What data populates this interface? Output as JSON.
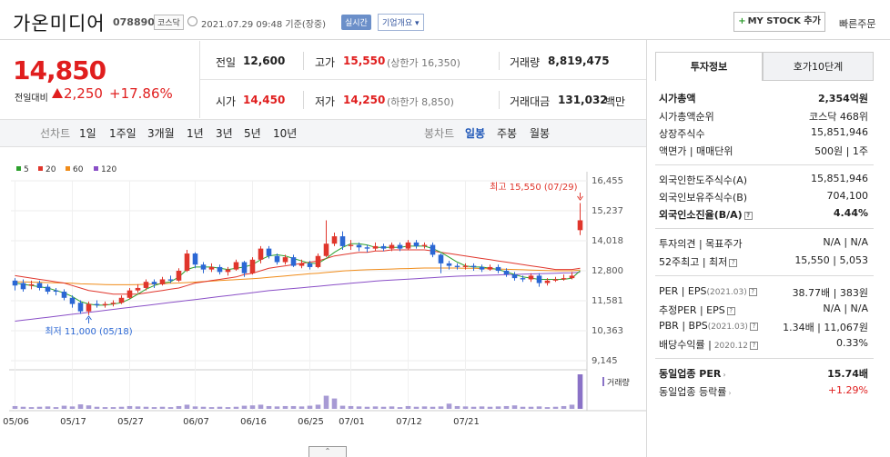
{
  "header": {
    "stock_name": "가온미디어",
    "stock_code": "078890",
    "market": "코스닥",
    "datetime": "2021.07.29 09:48 기준(장중)",
    "realtime_label": "실시간",
    "company_overview_label": "기업개요 ▾",
    "my_stock_label": "MY STOCK 추가",
    "quick_order_label": "빠른주문"
  },
  "price": {
    "current": "14,850",
    "prev_day_label": "전일대비",
    "change": "2,250",
    "change_pct": "+17.86%"
  },
  "quote": {
    "prev_close_label": "전일",
    "prev_close": "12,600",
    "high_label": "고가",
    "high": "15,550",
    "upper_limit": "(상한가 16,350)",
    "volume_label": "거래량",
    "volume": "8,819,475",
    "open_label": "시가",
    "open": "14,450",
    "low_label": "저가",
    "low": "14,250",
    "lower_limit": "(하한가 8,850)",
    "amount_label": "거래대금",
    "amount": "131,032",
    "amount_unit": "백만"
  },
  "period_bar": {
    "line_label": "선차트",
    "line_periods": [
      "1일",
      "1주일",
      "3개월",
      "1년",
      "3년",
      "5년",
      "10년"
    ],
    "candle_label": "봉차트",
    "candle_periods": [
      "일봉",
      "주봉",
      "월봉"
    ],
    "active_candle": "일봉"
  },
  "chart_data": {
    "type": "candlestick",
    "legend": [
      {
        "name": "5",
        "color": "#2ca02c"
      },
      {
        "name": "20",
        "color": "#e0362c"
      },
      {
        "name": "60",
        "color": "#f08c1a"
      },
      {
        "name": "120",
        "color": "#8a4fc7"
      }
    ],
    "y_ticks": [
      "16,455",
      "15,237",
      "14,018",
      "12,800",
      "11,581",
      "10,363",
      "9,145"
    ],
    "y_range": [
      9145,
      16455
    ],
    "x_ticks": [
      "05/06",
      "05/17",
      "05/27",
      "06/07",
      "06/16",
      "06/25",
      "07/01",
      "07/12",
      "07/21"
    ],
    "volume_label": "거래량",
    "high_annotation": "최고 15,550 (07/29)",
    "low_annotation": "최저 11,000 (05/18)",
    "candles": [
      {
        "o": 12400,
        "c": 12200,
        "h": 12500,
        "l": 12000
      },
      {
        "o": 12300,
        "c": 12050,
        "h": 12450,
        "l": 11950
      },
      {
        "o": 12200,
        "c": 12250,
        "h": 12400,
        "l": 12050
      },
      {
        "o": 12300,
        "c": 12100,
        "h": 12400,
        "l": 12000
      },
      {
        "o": 12150,
        "c": 11950,
        "h": 12250,
        "l": 11850
      },
      {
        "o": 12000,
        "c": 11950,
        "h": 12100,
        "l": 11800
      },
      {
        "o": 11950,
        "c": 11700,
        "h": 12050,
        "l": 11600
      },
      {
        "o": 11700,
        "c": 11450,
        "h": 11800,
        "l": 11300
      },
      {
        "o": 11500,
        "c": 11150,
        "h": 11600,
        "l": 11050
      },
      {
        "o": 11150,
        "c": 11450,
        "h": 11550,
        "l": 11000
      },
      {
        "o": 11450,
        "c": 11400,
        "h": 11600,
        "l": 11300
      },
      {
        "o": 11400,
        "c": 11450,
        "h": 11550,
        "l": 11300
      },
      {
        "o": 11450,
        "c": 11500,
        "h": 11600,
        "l": 11350
      },
      {
        "o": 11500,
        "c": 11700,
        "h": 11800,
        "l": 11450
      },
      {
        "o": 11700,
        "c": 12000,
        "h": 12100,
        "l": 11650
      },
      {
        "o": 12000,
        "c": 12100,
        "h": 12250,
        "l": 11900
      },
      {
        "o": 12100,
        "c": 12350,
        "h": 12450,
        "l": 12000
      },
      {
        "o": 12350,
        "c": 12250,
        "h": 12450,
        "l": 12100
      },
      {
        "o": 12250,
        "c": 12450,
        "h": 12550,
        "l": 12200
      },
      {
        "o": 12450,
        "c": 12400,
        "h": 12600,
        "l": 12300
      },
      {
        "o": 12400,
        "c": 12800,
        "h": 12900,
        "l": 12350
      },
      {
        "o": 12800,
        "c": 13500,
        "h": 13650,
        "l": 12750
      },
      {
        "o": 13500,
        "c": 13050,
        "h": 13550,
        "l": 12900
      },
      {
        "o": 13050,
        "c": 12850,
        "h": 13150,
        "l": 12700
      },
      {
        "o": 12850,
        "c": 12950,
        "h": 13100,
        "l": 12750
      },
      {
        "o": 12950,
        "c": 12750,
        "h": 13050,
        "l": 12650
      },
      {
        "o": 12750,
        "c": 12850,
        "h": 12950,
        "l": 12600
      },
      {
        "o": 12850,
        "c": 13150,
        "h": 13250,
        "l": 12800
      },
      {
        "o": 13150,
        "c": 12700,
        "h": 13200,
        "l": 12550
      },
      {
        "o": 12700,
        "c": 13250,
        "h": 13350,
        "l": 12650
      },
      {
        "o": 13250,
        "c": 13700,
        "h": 13800,
        "l": 13100
      },
      {
        "o": 13700,
        "c": 13400,
        "h": 13800,
        "l": 13300
      },
      {
        "o": 13400,
        "c": 13150,
        "h": 13500,
        "l": 13050
      },
      {
        "o": 13150,
        "c": 13350,
        "h": 13450,
        "l": 13050
      },
      {
        "o": 13350,
        "c": 13000,
        "h": 13450,
        "l": 12950
      },
      {
        "o": 13000,
        "c": 13100,
        "h": 13250,
        "l": 12900
      },
      {
        "o": 13100,
        "c": 12950,
        "h": 13200,
        "l": 12850
      },
      {
        "o": 12950,
        "c": 13400,
        "h": 13500,
        "l": 12900
      },
      {
        "o": 13400,
        "c": 13900,
        "h": 14850,
        "l": 13350
      },
      {
        "o": 13900,
        "c": 14200,
        "h": 14350,
        "l": 13800
      },
      {
        "o": 14200,
        "c": 13800,
        "h": 14400,
        "l": 13650
      },
      {
        "o": 13800,
        "c": 13850,
        "h": 14050,
        "l": 13650
      },
      {
        "o": 13850,
        "c": 13750,
        "h": 13950,
        "l": 13600
      },
      {
        "o": 13750,
        "c": 13700,
        "h": 13850,
        "l": 13550
      },
      {
        "o": 13700,
        "c": 13800,
        "h": 13950,
        "l": 13600
      },
      {
        "o": 13800,
        "c": 13700,
        "h": 13900,
        "l": 13600
      },
      {
        "o": 13700,
        "c": 13850,
        "h": 13950,
        "l": 13600
      },
      {
        "o": 13850,
        "c": 13700,
        "h": 13950,
        "l": 13600
      },
      {
        "o": 13700,
        "c": 13950,
        "h": 14050,
        "l": 13650
      },
      {
        "o": 13950,
        "c": 13800,
        "h": 14050,
        "l": 13700
      },
      {
        "o": 13800,
        "c": 13850,
        "h": 13950,
        "l": 13700
      },
      {
        "o": 13850,
        "c": 13450,
        "h": 13950,
        "l": 13350
      },
      {
        "o": 13450,
        "c": 13100,
        "h": 13500,
        "l": 12700
      },
      {
        "o": 13100,
        "c": 13000,
        "h": 13200,
        "l": 12850
      },
      {
        "o": 13000,
        "c": 12950,
        "h": 13100,
        "l": 12850
      },
      {
        "o": 12950,
        "c": 13000,
        "h": 13100,
        "l": 12850
      },
      {
        "o": 13000,
        "c": 12950,
        "h": 13100,
        "l": 12800
      },
      {
        "o": 12950,
        "c": 12850,
        "h": 13050,
        "l": 12750
      },
      {
        "o": 12850,
        "c": 12950,
        "h": 13050,
        "l": 12800
      },
      {
        "o": 12950,
        "c": 12800,
        "h": 13050,
        "l": 12700
      },
      {
        "o": 12800,
        "c": 12650,
        "h": 12900,
        "l": 12550
      },
      {
        "o": 12650,
        "c": 12500,
        "h": 12750,
        "l": 12400
      },
      {
        "o": 12500,
        "c": 12450,
        "h": 12600,
        "l": 12350
      },
      {
        "o": 12450,
        "c": 12600,
        "h": 12700,
        "l": 12350
      },
      {
        "o": 12600,
        "c": 12300,
        "h": 12700,
        "l": 12150
      },
      {
        "o": 12300,
        "c": 12400,
        "h": 12500,
        "l": 12200
      },
      {
        "o": 12400,
        "c": 12450,
        "h": 12550,
        "l": 12350
      },
      {
        "o": 12450,
        "c": 12500,
        "h": 12650,
        "l": 12400
      },
      {
        "o": 12500,
        "c": 12600,
        "h": 12750,
        "l": 12450
      },
      {
        "o": 14450,
        "c": 14850,
        "h": 15550,
        "l": 14250
      }
    ],
    "volumes": [
      8,
      6,
      5,
      6,
      7,
      5,
      9,
      7,
      13,
      10,
      6,
      5,
      5,
      6,
      8,
      7,
      6,
      5,
      6,
      5,
      8,
      12,
      7,
      6,
      5,
      6,
      5,
      6,
      9,
      10,
      12,
      8,
      7,
      8,
      8,
      7,
      9,
      12,
      38,
      30,
      9,
      8,
      7,
      6,
      7,
      6,
      7,
      5,
      8,
      6,
      7,
      6,
      7,
      15,
      8,
      7,
      6,
      7,
      6,
      7,
      8,
      10,
      6,
      6,
      7,
      5,
      6,
      8,
      12,
      100
    ],
    "ma5": [
      12300,
      12250,
      12200,
      12150,
      12100,
      12000,
      11900,
      11750,
      11550,
      11450,
      11400,
      11400,
      11450,
      11500,
      11650,
      11850,
      12050,
      12200,
      12300,
      12350,
      12550,
      12850,
      12950,
      12950,
      12950,
      12900,
      12850,
      12900,
      12950,
      13050,
      13250,
      13400,
      13450,
      13400,
      13300,
      13200,
      13100,
      13100,
      13300,
      13550,
      13750,
      13900,
      13900,
      13850,
      13750,
      13750,
      13750,
      13750,
      13800,
      13800,
      13800,
      13700,
      13550,
      13350,
      13150,
      13000,
      12950,
      12950,
      12900,
      12850,
      12750,
      12650,
      12550,
      12500,
      12450,
      12450,
      12450,
      12450,
      12500,
      12800
    ],
    "ma20": [
      12600,
      12550,
      12500,
      12450,
      12400,
      12350,
      12300,
      12200,
      12100,
      12000,
      11950,
      11900,
      11850,
      11850,
      11850,
      11850,
      11900,
      11950,
      12000,
      12050,
      12100,
      12200,
      12300,
      12350,
      12400,
      12450,
      12500,
      12550,
      12650,
      12700,
      12800,
      12900,
      12950,
      13000,
      13050,
      13100,
      13150,
      13200,
      13300,
      13400,
      13450,
      13500,
      13550,
      13550,
      13600,
      13600,
      13650,
      13650,
      13650,
      13650,
      13650,
      13600,
      13550,
      13500,
      13450,
      13400,
      13350,
      13300,
      13250,
      13200,
      13150,
      13100,
      13050,
      13000,
      12950,
      12900,
      12850,
      12850,
      12850,
      12900
    ],
    "ma60": [
      12350,
      12350,
      12340,
      12330,
      12320,
      12310,
      12300,
      12290,
      12270,
      12260,
      12250,
      12240,
      12230,
      12230,
      12230,
      12240,
      12250,
      12260,
      12270,
      12290,
      12300,
      12320,
      12340,
      12360,
      12380,
      12400,
      12420,
      12440,
      12460,
      12480,
      12500,
      12530,
      12560,
      12590,
      12620,
      12650,
      12680,
      12700,
      12730,
      12760,
      12790,
      12810,
      12830,
      12840,
      12850,
      12860,
      12870,
      12880,
      12890,
      12900,
      12910,
      12910,
      12910,
      12910,
      12910,
      12900,
      12900,
      12890,
      12880,
      12870,
      12860,
      12850,
      12840,
      12830,
      12820,
      12810,
      12800,
      12800,
      12800,
      12830
    ],
    "ma120": [
      10750,
      10790,
      10830,
      10870,
      10910,
      10950,
      10990,
      11030,
      11070,
      11110,
      11150,
      11190,
      11230,
      11270,
      11310,
      11350,
      11390,
      11430,
      11470,
      11510,
      11550,
      11590,
      11630,
      11670,
      11710,
      11750,
      11790,
      11830,
      11870,
      11910,
      11950,
      11990,
      12020,
      12050,
      12080,
      12110,
      12140,
      12170,
      12200,
      12230,
      12260,
      12290,
      12320,
      12350,
      12380,
      12400,
      12420,
      12440,
      12460,
      12480,
      12500,
      12520,
      12540,
      12560,
      12580,
      12590,
      12600,
      12610,
      12620,
      12630,
      12640,
      12650,
      12660,
      12670,
      12680,
      12690,
      12700,
      12710,
      12720,
      12740
    ]
  },
  "info": {
    "tab_invest": "투자정보",
    "tab_hoga": "호가10단계",
    "market_cap_label": "시가총액",
    "market_cap": "2,354억원",
    "market_cap_rank_label": "시가총액순위",
    "market_cap_rank": "코스닥 468위",
    "shares_label": "상장주식수",
    "shares": "15,851,946",
    "par_label": "액면가 | 매매단위",
    "par": "500원 | 1주",
    "foreign_limit_label": "외국인한도주식수(A)",
    "foreign_limit": "15,851,946",
    "foreign_hold_label": "외국인보유주식수(B)",
    "foreign_hold": "704,100",
    "foreign_ratio_label": "외국인소진율(B/A)",
    "foreign_ratio": "4.44%",
    "opinion_label": "투자의견 | 목표주가",
    "opinion": "N/A | N/A",
    "week52_label": "52주최고 | 최저",
    "week52": "15,550 | 5,053",
    "per_label": "PER | EPS",
    "per_date": "(2021.03)",
    "per": "38.77배 | 383원",
    "est_per_label": "추정PER | EPS",
    "est_per": "N/A | N/A",
    "pbr_label": "PBR | BPS",
    "pbr_date": "(2021.03)",
    "pbr": "1.34배 | 11,067원",
    "dividend_label": "배당수익률 |",
    "dividend_date": "2020.12",
    "dividend": "0.33%",
    "sector_per_label": "동일업종 PER",
    "sector_per": "15.74배",
    "sector_change_label": "동일업종 등락률",
    "sector_change": "+1.29%"
  }
}
